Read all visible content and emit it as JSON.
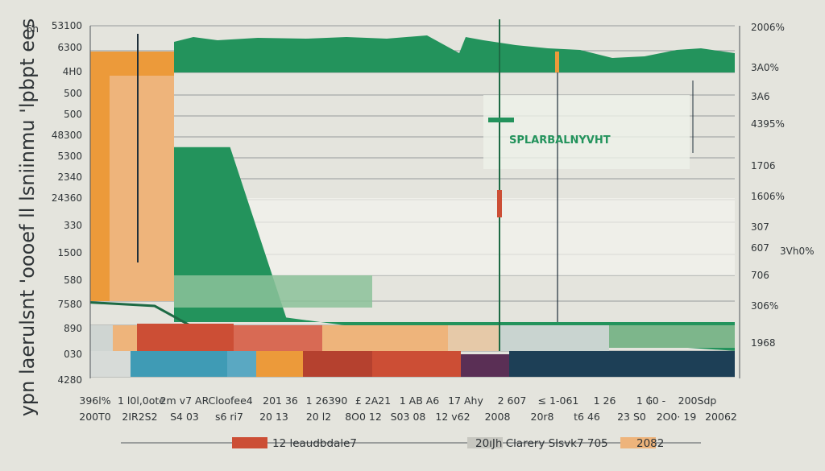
{
  "colors": {
    "background": "#e4e4dd",
    "green": "#23935c",
    "darkGreen": "#1d6a44",
    "lightGreen": "#b7d8bc",
    "orange": "#ec9a3a",
    "lightOrange": "#eeb47b",
    "red": "#cc4e35",
    "teal": "#3f9bb5",
    "navy": "#1d3f56",
    "purple": "#5a2f55"
  },
  "chart_data": {
    "type": "area",
    "annotation": "SPLARBALNYVHT",
    "ylabel_left": "ypn laerulsnt 'oooef ll lsniinmu 'lpbpt ees",
    "left_ticks": [
      "6h",
      "53100",
      "6300",
      "4H0",
      "500",
      "500",
      "48300",
      "5300",
      "2340",
      "24360",
      "330",
      "1500",
      "580",
      "7580",
      "890",
      "030",
      "4280"
    ],
    "right_ticks": [
      "2006%",
      "3A0%",
      "3A6",
      "4395%",
      "1706",
      "1606%",
      "307",
      "607",
      "706",
      "306%",
      "1968"
    ],
    "right_outer_label": "3Vh0%",
    "x_ticks_top": [
      "396l%",
      "1 l0l,0ote",
      "2m v7 ARC",
      "loofee4",
      "201 36",
      "1 26390",
      "£ 2A21",
      "1 AB A6",
      "17 Ahy",
      "2 607",
      "≤ 1-061",
      "1 26",
      "1 ₲0 -",
      "200Sdp"
    ],
    "x_ticks_bottom": [
      "200T0",
      "2IR2S2",
      "S4 03",
      "s6 ri7",
      "20 13",
      "20 l2",
      "8O0 12",
      "S03 08",
      "12 v62",
      "2008",
      "20r8",
      "t6 46",
      "23 S0",
      "2O0· 19",
      "20062"
    ],
    "series": [
      {
        "name": "green area",
        "values": [
          31,
          31,
          8,
          7,
          6,
          5.5,
          5.5,
          5,
          4.5,
          4,
          3.5
        ]
      },
      {
        "name": "dark green line",
        "values": [
          4.2,
          4,
          2,
          1.5,
          1.5,
          1.2,
          1.2,
          1.2,
          1.2,
          1.2,
          1
        ]
      }
    ],
    "legend": [
      {
        "label": "12 leaudbdale7",
        "color": "#cc4e35"
      },
      {
        "label": "20ıJh Clarery SIsvk7 705",
        "color": "#c7c7c0"
      },
      {
        "label": "2082",
        "color": "#eeb47b"
      }
    ]
  }
}
